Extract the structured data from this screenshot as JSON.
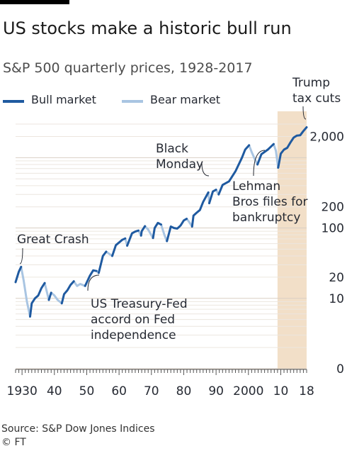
{
  "header": {
    "title": "US stocks make a historic bull run",
    "subtitle": "S&P 500 quarterly prices, 1928-2017"
  },
  "legend": {
    "items": [
      {
        "label": "Bull market",
        "color": "#1f5aa0"
      },
      {
        "label": "Bear market",
        "color": "#a9c5e2"
      }
    ]
  },
  "footer": {
    "source": "Source: S&P Dow Jones Indices",
    "credit": "© FT"
  },
  "chart_data": {
    "type": "line",
    "scale": "log",
    "xlim": [
      1928,
      2018
    ],
    "x_ticks": [
      {
        "value": 1930,
        "label": "1930"
      },
      {
        "value": 1940,
        "label": "40"
      },
      {
        "value": 1950,
        "label": "50"
      },
      {
        "value": 1960,
        "label": "60"
      },
      {
        "value": 1970,
        "label": "70"
      },
      {
        "value": 1980,
        "label": "80"
      },
      {
        "value": 1990,
        "label": "90"
      },
      {
        "value": 2000,
        "label": "2000"
      },
      {
        "value": 2010,
        "label": "10"
      },
      {
        "value": 2018,
        "label": "18"
      }
    ],
    "y_ticks": [
      {
        "value": 1,
        "label": "0"
      },
      {
        "value": 10,
        "label": "10"
      },
      {
        "value": 20,
        "label": "20"
      },
      {
        "value": 100,
        "label": "100"
      },
      {
        "value": 200,
        "label": "200"
      },
      {
        "value": 2000,
        "label": "2,000"
      }
    ],
    "ylim": [
      1,
      3000
    ],
    "grid": true,
    "highlight": {
      "x_start": 2009,
      "x_end": 2018,
      "color": "#f2dfc8"
    },
    "series": [
      {
        "name": "Bull market",
        "color": "#1f5aa0",
        "segments": [
          [
            [
              1928,
              17
            ],
            [
              1929,
              24
            ],
            [
              1929.7,
              28
            ]
          ],
          [
            [
              1932.5,
              5.5
            ],
            [
              1933,
              8.5
            ],
            [
              1934,
              10
            ],
            [
              1935,
              11
            ],
            [
              1936,
              14
            ],
            [
              1937,
              16.5
            ]
          ],
          [
            [
              1938.3,
              9.5
            ],
            [
              1939,
              12
            ]
          ],
          [
            [
              1942.3,
              8.5
            ],
            [
              1943,
              11.5
            ],
            [
              1944,
              13
            ],
            [
              1945,
              15.5
            ],
            [
              1946,
              17.5
            ]
          ],
          [
            [
              1949.5,
              15
            ],
            [
              1951,
              21
            ],
            [
              1952,
              25
            ],
            [
              1953,
              24.5
            ]
          ],
          [
            [
              1953.7,
              23
            ],
            [
              1955,
              40
            ],
            [
              1956,
              46
            ]
          ],
          [
            [
              1957.9,
              40
            ],
            [
              1959,
              57
            ],
            [
              1961,
              68
            ],
            [
              1961.9,
              71
            ]
          ],
          [
            [
              1962.5,
              56
            ],
            [
              1964,
              84
            ],
            [
              1965,
              89
            ],
            [
              1966,
              92
            ]
          ],
          [
            [
              1966.8,
              78
            ],
            [
              1967,
              90
            ],
            [
              1968,
              106
            ]
          ],
          [
            [
              1970.5,
              72
            ],
            [
              1971,
              100
            ],
            [
              1972,
              118
            ],
            [
              1973,
              112
            ]
          ],
          [
            [
              1974.8,
              65
            ],
            [
              1976,
              105
            ],
            [
              1977,
              100
            ],
            [
              1978,
              98
            ],
            [
              1979,
              108
            ],
            [
              1980,
              128
            ],
            [
              1980.9,
              135
            ]
          ],
          [
            [
              1982.6,
              105
            ],
            [
              1983,
              150
            ],
            [
              1984,
              165
            ],
            [
              1985,
              180
            ],
            [
              1986,
              235
            ],
            [
              1987.6,
              320
            ]
          ],
          [
            [
              1987.9,
              225
            ],
            [
              1989,
              330
            ],
            [
              1990,
              350
            ]
          ],
          [
            [
              1990.8,
              300
            ],
            [
              1992,
              410
            ],
            [
              1994,
              460
            ],
            [
              1996,
              640
            ],
            [
              1998,
              1000
            ],
            [
              1999,
              1300
            ],
            [
              2000.2,
              1500
            ]
          ],
          [
            [
              2002.8,
              800
            ],
            [
              2004,
              1120
            ],
            [
              2006,
              1300
            ],
            [
              2007.8,
              1560
            ]
          ],
          [
            [
              2009.2,
              720
            ],
            [
              2010,
              1140
            ],
            [
              2011,
              1300
            ],
            [
              2012,
              1380
            ],
            [
              2013,
              1650
            ],
            [
              2014,
              1930
            ],
            [
              2015,
              2060
            ],
            [
              2016,
              2080
            ],
            [
              2017,
              2390
            ],
            [
              2018,
              2700
            ]
          ]
        ]
      },
      {
        "name": "Bear market",
        "color": "#a9c5e2",
        "segments": [
          [
            [
              1929.7,
              28
            ],
            [
              1930.5,
              18
            ],
            [
              1931.5,
              9
            ],
            [
              1932.5,
              5.5
            ]
          ],
          [
            [
              1937,
              16.5
            ],
            [
              1938.3,
              9.5
            ]
          ],
          [
            [
              1939,
              12
            ],
            [
              1940,
              11
            ],
            [
              1941,
              9.5
            ],
            [
              1942.3,
              8.5
            ]
          ],
          [
            [
              1946,
              17.5
            ],
            [
              1947,
              15
            ],
            [
              1948,
              16
            ],
            [
              1949.5,
              15
            ]
          ],
          [
            [
              1953,
              24.5
            ],
            [
              1953.7,
              23
            ]
          ],
          [
            [
              1956,
              46
            ],
            [
              1957.9,
              40
            ]
          ],
          [
            [
              1961.9,
              71
            ],
            [
              1962.5,
              56
            ]
          ],
          [
            [
              1966,
              92
            ],
            [
              1966.8,
              78
            ]
          ],
          [
            [
              1968,
              106
            ],
            [
              1969,
              95
            ],
            [
              1970.5,
              72
            ]
          ],
          [
            [
              1973,
              112
            ],
            [
              1974,
              80
            ],
            [
              1974.8,
              65
            ]
          ],
          [
            [
              1980.9,
              135
            ],
            [
              1981.5,
              125
            ],
            [
              1982.6,
              105
            ]
          ],
          [
            [
              1987.6,
              320
            ],
            [
              1987.9,
              225
            ]
          ],
          [
            [
              1990,
              350
            ],
            [
              1990.8,
              300
            ]
          ],
          [
            [
              2000.2,
              1500
            ],
            [
              2001,
              1200
            ],
            [
              2002,
              950
            ],
            [
              2002.8,
              800
            ]
          ],
          [
            [
              2007.8,
              1560
            ],
            [
              2008.5,
              1250
            ],
            [
              2009.2,
              720
            ]
          ]
        ]
      }
    ],
    "annotations": [
      {
        "text": [
          "Great Crash"
        ],
        "x": 1929.5,
        "y": 28
      },
      {
        "text": [
          "US Treasury-Fed",
          "accord on Fed",
          "independence"
        ],
        "x": 1951,
        "y": 21
      },
      {
        "text": [
          "Black",
          "Monday"
        ],
        "x": 1987.7,
        "y": 280
      },
      {
        "text": [
          "Lehman",
          "Bros files for",
          "bankruptcy"
        ],
        "x": 2008.7,
        "y": 1200
      },
      {
        "text": [
          "Trump",
          "tax cuts"
        ],
        "x": 2017.7,
        "y": 2650
      }
    ]
  }
}
